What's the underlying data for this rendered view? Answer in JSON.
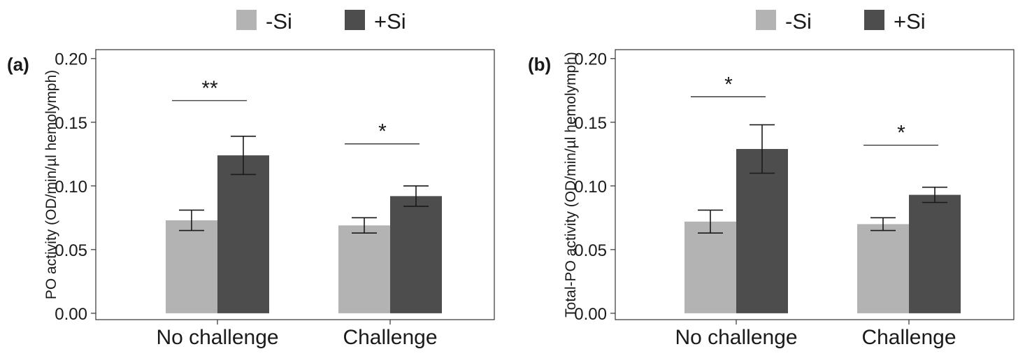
{
  "chart_data": [
    {
      "type": "bar",
      "panel_label": "(a)",
      "ylabel": "PO activity (OD/min/µl hemolymph)",
      "categories": [
        "No challenge",
        "Challenge"
      ],
      "series": [
        {
          "name": "-Si",
          "values": [
            0.073,
            0.069
          ],
          "error": [
            0.008,
            0.006
          ],
          "color": "#b3b3b3"
        },
        {
          "name": "+Si",
          "values": [
            0.124,
            0.092
          ],
          "error": [
            0.015,
            0.008
          ],
          "color": "#4d4d4d"
        }
      ],
      "significance": [
        "**",
        "*"
      ],
      "sig_y": [
        0.167,
        0.133
      ],
      "ylim": [
        -0.005,
        0.207
      ],
      "yticks": [
        0.0,
        0.05,
        0.1,
        0.15,
        0.2
      ],
      "ytick_labels": [
        "0.00",
        "0.05",
        "0.10",
        "0.15",
        "0.20"
      ],
      "legend_position": "top-center",
      "grid": false
    },
    {
      "type": "bar",
      "panel_label": "(b)",
      "ylabel": "Total-PO activity (OD/min/µl hemolymph)",
      "categories": [
        "No challenge",
        "Challenge"
      ],
      "series": [
        {
          "name": "-Si",
          "values": [
            0.072,
            0.07
          ],
          "error": [
            0.009,
            0.005
          ],
          "color": "#b3b3b3"
        },
        {
          "name": "+Si",
          "values": [
            0.129,
            0.093
          ],
          "error": [
            0.019,
            0.006
          ],
          "color": "#4d4d4d"
        }
      ],
      "significance": [
        "*",
        "*"
      ],
      "sig_y": [
        0.17,
        0.132
      ],
      "ylim": [
        -0.005,
        0.207
      ],
      "yticks": [
        0.0,
        0.05,
        0.1,
        0.15,
        0.2
      ],
      "ytick_labels": [
        "0.00",
        "0.05",
        "0.10",
        "0.15",
        "0.20"
      ],
      "legend_position": "top-center",
      "grid": false
    }
  ]
}
